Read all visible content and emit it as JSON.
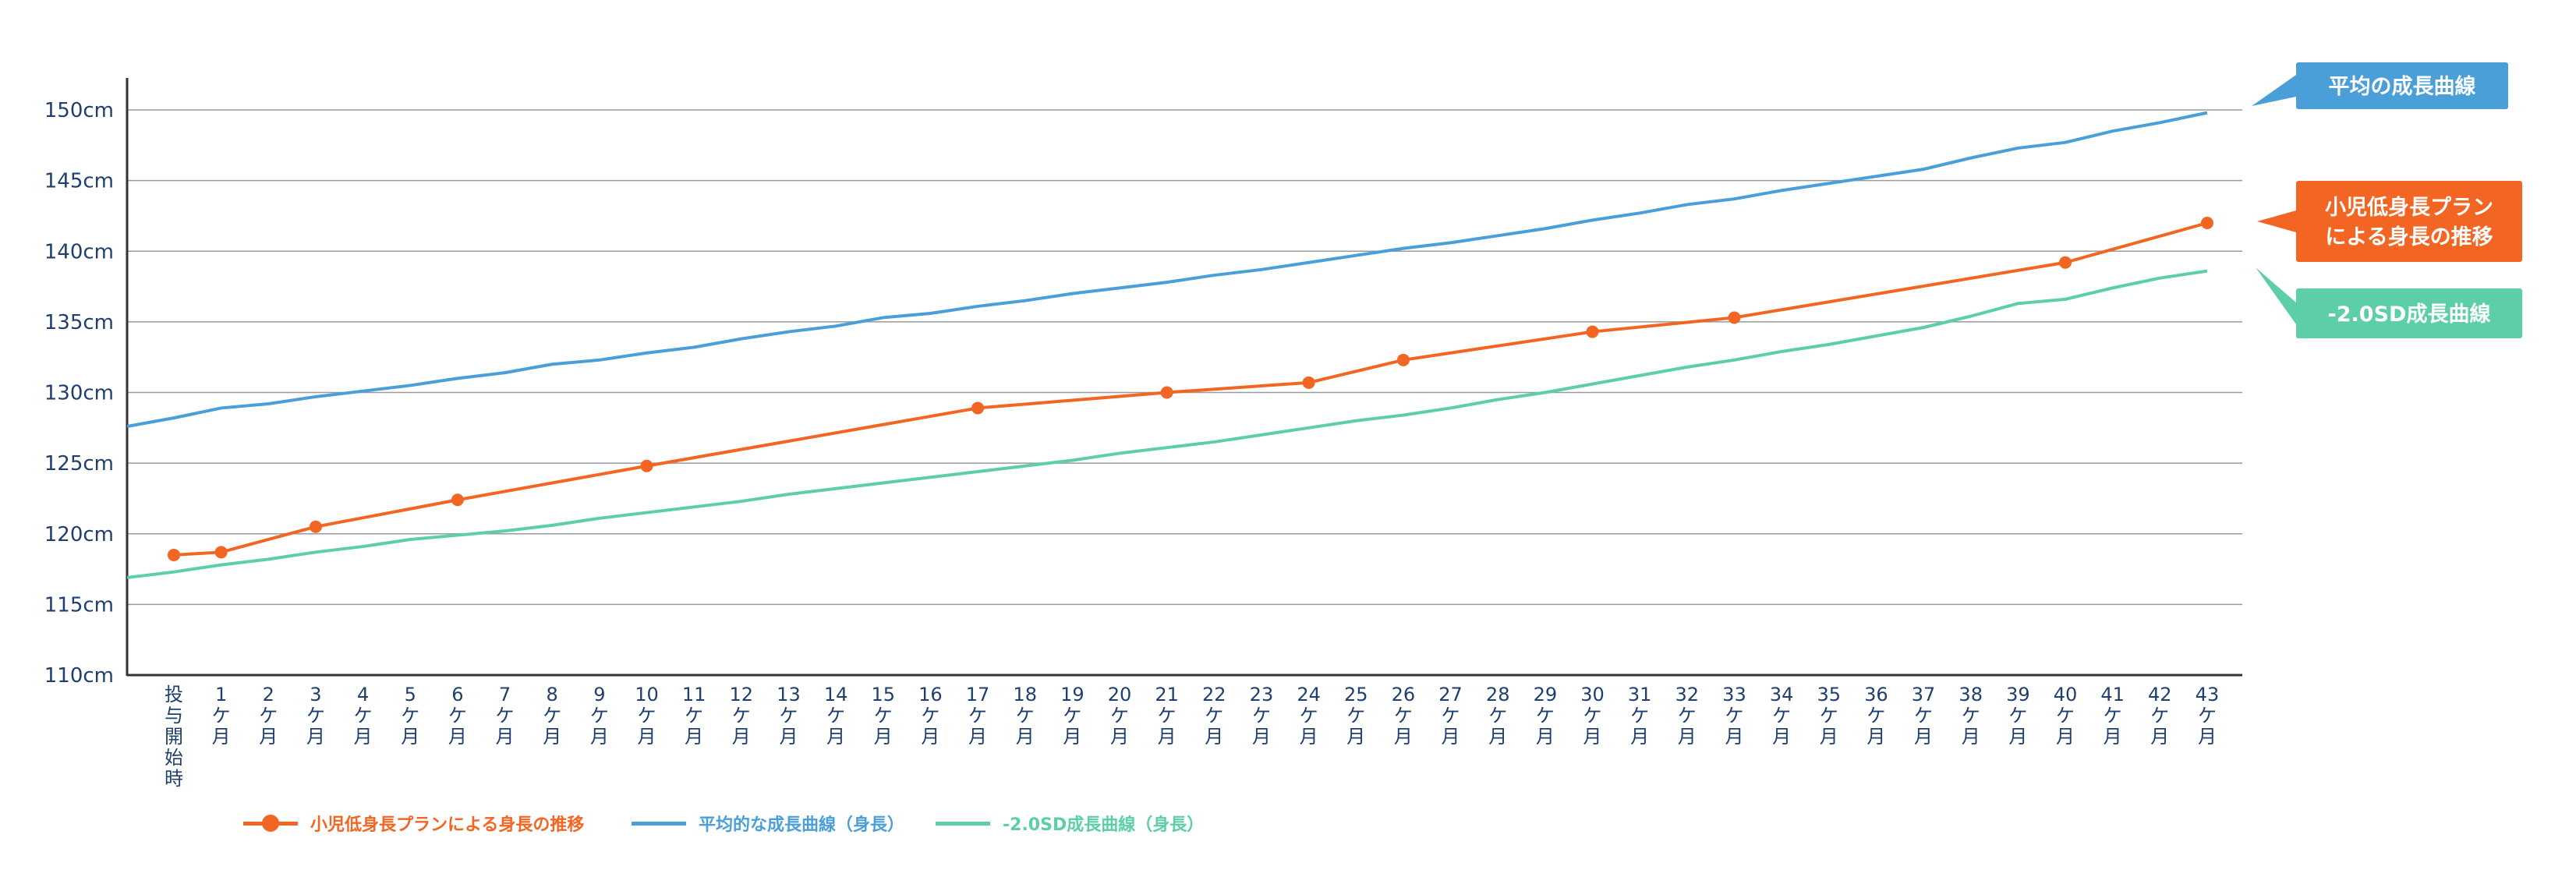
{
  "chart_data": {
    "type": "line",
    "ylim": [
      110,
      150
    ],
    "y_ticks": [
      "110cm",
      "115cm",
      "120cm",
      "125cm",
      "130cm",
      "135cm",
      "140cm",
      "145cm",
      "150cm"
    ],
    "y_tick_values": [
      110,
      115,
      120,
      125,
      130,
      135,
      140,
      145,
      150
    ],
    "categories": [
      "投与開始時",
      "1ケ月",
      "2ケ月",
      "3ケ月",
      "4ケ月",
      "5ケ月",
      "6ケ月",
      "7ケ月",
      "8ケ月",
      "9ケ月",
      "10ケ月",
      "11ケ月",
      "12ケ月",
      "13ケ月",
      "14ケ月",
      "15ケ月",
      "16ケ月",
      "17ケ月",
      "18ケ月",
      "19ケ月",
      "20ケ月",
      "21ケ月",
      "22ケ月",
      "23ケ月",
      "24ケ月",
      "25ケ月",
      "26ケ月",
      "27ケ月",
      "28ケ月",
      "29ケ月",
      "30ケ月",
      "31ケ月",
      "32ケ月",
      "33ケ月",
      "34ケ月",
      "35ケ月",
      "36ケ月",
      "37ケ月",
      "38ケ月",
      "39ケ月",
      "40ケ月",
      "41ケ月",
      "42ケ月",
      "43ケ月"
    ],
    "x_tick_labels": [
      [
        "投",
        "与",
        "開",
        "始",
        "時"
      ],
      [
        "1",
        "ケ",
        "月"
      ],
      [
        "2",
        "ケ",
        "月"
      ],
      [
        "3",
        "ケ",
        "月"
      ],
      [
        "4",
        "ケ",
        "月"
      ],
      [
        "5",
        "ケ",
        "月"
      ],
      [
        "6",
        "ケ",
        "月"
      ],
      [
        "7",
        "ケ",
        "月"
      ],
      [
        "8",
        "ケ",
        "月"
      ],
      [
        "9",
        "ケ",
        "月"
      ],
      [
        "10",
        "ケ",
        "月"
      ],
      [
        "11",
        "ケ",
        "月"
      ],
      [
        "12",
        "ケ",
        "月"
      ],
      [
        "13",
        "ケ",
        "月"
      ],
      [
        "14",
        "ケ",
        "月"
      ],
      [
        "15",
        "ケ",
        "月"
      ],
      [
        "16",
        "ケ",
        "月"
      ],
      [
        "17",
        "ケ",
        "月"
      ],
      [
        "18",
        "ケ",
        "月"
      ],
      [
        "19",
        "ケ",
        "月"
      ],
      [
        "20",
        "ケ",
        "月"
      ],
      [
        "21",
        "ケ",
        "月"
      ],
      [
        "22",
        "ケ",
        "月"
      ],
      [
        "23",
        "ケ",
        "月"
      ],
      [
        "24",
        "ケ",
        "月"
      ],
      [
        "25",
        "ケ",
        "月"
      ],
      [
        "26",
        "ケ",
        "月"
      ],
      [
        "27",
        "ケ",
        "月"
      ],
      [
        "28",
        "ケ",
        "月"
      ],
      [
        "29",
        "ケ",
        "月"
      ],
      [
        "30",
        "ケ",
        "月"
      ],
      [
        "31",
        "ケ",
        "月"
      ],
      [
        "32",
        "ケ",
        "月"
      ],
      [
        "33",
        "ケ",
        "月"
      ],
      [
        "34",
        "ケ",
        "月"
      ],
      [
        "35",
        "ケ",
        "月"
      ],
      [
        "36",
        "ケ",
        "月"
      ],
      [
        "37",
        "ケ",
        "月"
      ],
      [
        "38",
        "ケ",
        "月"
      ],
      [
        "39",
        "ケ",
        "月"
      ],
      [
        "40",
        "ケ",
        "月"
      ],
      [
        "41",
        "ケ",
        "月"
      ],
      [
        "42",
        "ケ",
        "月"
      ],
      [
        "43",
        "ケ",
        "月"
      ]
    ],
    "grid": true,
    "legend_position": "bottom-left",
    "series": [
      {
        "name": "小児低身長プランによる身長の推移",
        "color": "#f26522",
        "markers": true,
        "points": [
          {
            "x": 0,
            "y": 118.5
          },
          {
            "x": 1,
            "y": 118.7
          },
          {
            "x": 3,
            "y": 120.5
          },
          {
            "x": 6,
            "y": 122.4
          },
          {
            "x": 10,
            "y": 124.8
          },
          {
            "x": 17,
            "y": 128.9
          },
          {
            "x": 21,
            "y": 130.0
          },
          {
            "x": 24,
            "y": 130.7
          },
          {
            "x": 26,
            "y": 132.3
          },
          {
            "x": 30,
            "y": 134.3
          },
          {
            "x": 33,
            "y": 135.3
          },
          {
            "x": 40,
            "y": 139.2
          },
          {
            "x": 43,
            "y": 142.0
          }
        ]
      },
      {
        "name": "平均的な成長曲線（身長）",
        "color": "#4a9fd8",
        "markers": false,
        "line_start": {
          "x": -1,
          "y": 127.6
        },
        "values": [
          128.2,
          128.9,
          129.2,
          129.7,
          130.1,
          130.5,
          131.0,
          131.4,
          132.0,
          132.3,
          132.8,
          133.2,
          133.8,
          134.3,
          134.7,
          135.3,
          135.6,
          136.1,
          136.5,
          137.0,
          137.4,
          137.8,
          138.3,
          138.7,
          139.2,
          139.7,
          140.2,
          140.6,
          141.1,
          141.6,
          142.2,
          142.7,
          143.3,
          143.7,
          144.3,
          144.8,
          145.3,
          145.8,
          146.6,
          147.3,
          147.7,
          148.5,
          149.1,
          149.8
        ]
      },
      {
        "name": "-2.0SD成長曲線（身長）",
        "color": "#5ccfa6",
        "markers": false,
        "line_start": {
          "x": -1,
          "y": 116.9
        },
        "values": [
          117.3,
          117.8,
          118.2,
          118.7,
          119.1,
          119.6,
          119.9,
          120.2,
          120.6,
          121.1,
          121.5,
          121.9,
          122.3,
          122.8,
          123.2,
          123.6,
          124.0,
          124.4,
          124.8,
          125.2,
          125.7,
          126.1,
          126.5,
          127.0,
          127.5,
          128.0,
          128.4,
          128.9,
          129.5,
          130.0,
          130.6,
          131.2,
          131.8,
          132.3,
          132.9,
          133.4,
          134.0,
          134.6,
          135.4,
          136.3,
          136.6,
          137.4,
          138.1,
          138.6
        ]
      }
    ],
    "callouts": [
      {
        "lines": [
          "平均の成長曲線"
        ],
        "color": "#4a9fd8",
        "y": 150
      },
      {
        "lines": [
          "小児低身長プラン",
          "による身長の推移"
        ],
        "color": "#f26522",
        "y": 142.2
      },
      {
        "lines": [
          "-2.0SD成長曲線"
        ],
        "color": "#5ccfa6",
        "y": 138.6
      }
    ]
  }
}
